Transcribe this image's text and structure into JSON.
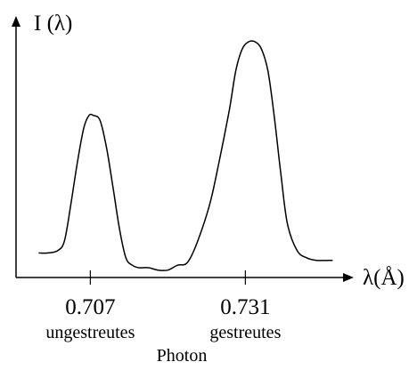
{
  "chart_data": {
    "type": "line",
    "ylabel": "I (λ)",
    "xlabel": "λ(Å)",
    "xlim": [
      0.6955,
      0.7475
    ],
    "ylim": [
      0,
      1
    ],
    "ticks": [
      {
        "value": 0.707,
        "label": "0.707",
        "sublabel": "ungestreutes"
      },
      {
        "value": 0.731,
        "label": "0.731",
        "sublabel": "gestreutes"
      }
    ],
    "bottom_caption": "Photon",
    "series": [
      {
        "x": [
          0.699,
          0.7005,
          0.702,
          0.703,
          0.704,
          0.705,
          0.706,
          0.7068,
          0.7075,
          0.7085,
          0.7095,
          0.7105,
          0.7115,
          0.7125,
          0.7135,
          0.7145,
          0.716,
          0.7175,
          0.719,
          0.7205,
          0.722,
          0.7235,
          0.7255,
          0.727,
          0.7285,
          0.7295,
          0.7305,
          0.7315,
          0.7325,
          0.7335,
          0.7345,
          0.7355,
          0.7365,
          0.7375,
          0.739,
          0.7405,
          0.742,
          0.7445
        ],
        "y": [
          0.1,
          0.1,
          0.11,
          0.15,
          0.3,
          0.47,
          0.61,
          0.66,
          0.66,
          0.64,
          0.53,
          0.37,
          0.2,
          0.08,
          0.05,
          0.04,
          0.04,
          0.03,
          0.03,
          0.05,
          0.06,
          0.14,
          0.3,
          0.48,
          0.68,
          0.84,
          0.93,
          0.96,
          0.96,
          0.93,
          0.84,
          0.65,
          0.42,
          0.22,
          0.11,
          0.08,
          0.07,
          0.07
        ]
      }
    ]
  }
}
